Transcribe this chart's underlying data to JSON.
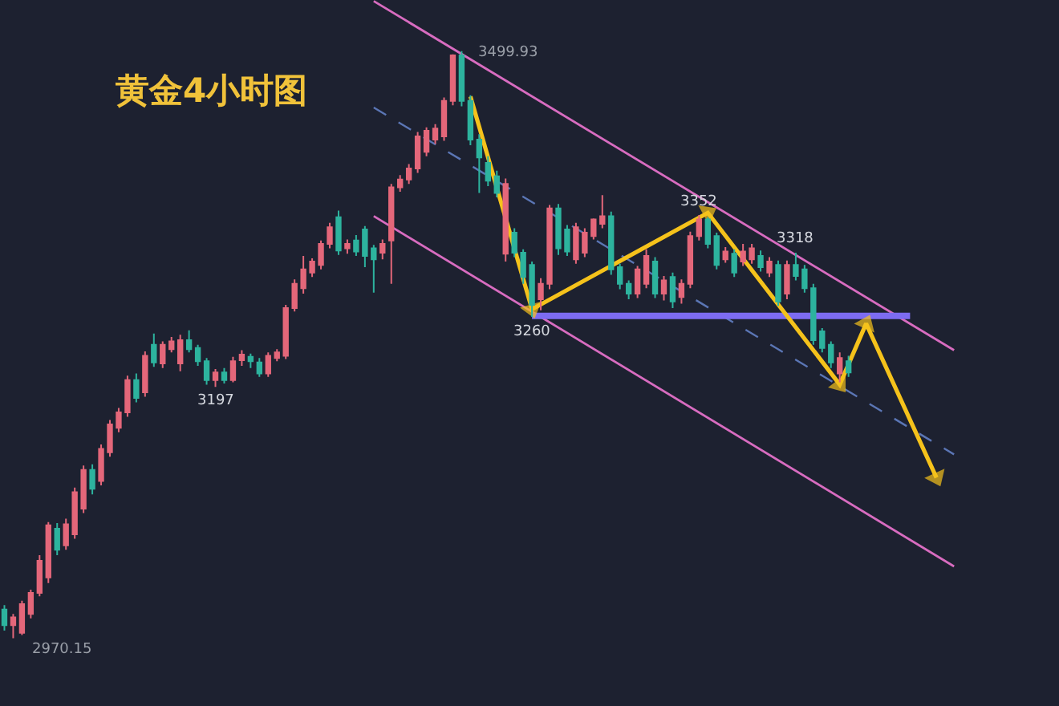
{
  "chart_data": {
    "type": "candlestick",
    "title": "黄金4小时图",
    "categories": [
      null,
      null,
      null,
      null,
      null,
      null,
      null,
      null,
      null,
      null,
      null,
      null,
      null,
      null,
      null,
      null,
      null,
      null,
      null,
      null,
      null,
      null,
      null,
      null,
      null,
      null,
      null,
      null,
      null,
      null,
      null,
      null,
      null,
      null,
      null,
      null,
      null,
      null,
      null,
      null,
      null,
      null,
      null,
      null,
      null,
      null,
      null,
      null,
      null,
      null,
      null,
      null,
      null,
      null,
      null,
      null,
      null,
      null,
      null,
      null,
      null,
      null,
      null,
      null,
      null,
      null,
      null,
      null,
      null,
      null,
      null,
      null,
      null,
      null,
      null,
      null,
      null,
      null,
      null,
      null,
      null,
      null,
      null,
      null,
      null,
      null,
      null,
      null,
      null,
      null,
      null,
      null,
      null,
      null,
      null,
      null,
      null,
      null,
      null,
      null,
      null,
      null,
      null,
      null,
      null,
      null,
      null,
      null,
      null
    ],
    "ohlc": [
      [
        2996,
        3000,
        2977,
        2982
      ],
      [
        2982,
        2992,
        2970.15,
        2989
      ],
      [
        2975,
        3004,
        2973,
        3001
      ],
      [
        2992,
        3014,
        2988,
        3011
      ],
      [
        3011,
        3045,
        3008,
        3040
      ],
      [
        3025,
        3075,
        3020,
        3072
      ],
      [
        3069,
        3074,
        3045,
        3050
      ],
      [
        3054,
        3078,
        3050,
        3073
      ],
      [
        3064,
        3106,
        3060,
        3102
      ],
      [
        3087,
        3126,
        3083,
        3122
      ],
      [
        3122,
        3127,
        3100,
        3105
      ],
      [
        3112,
        3145,
        3108,
        3141
      ],
      [
        3138,
        3167,
        3134,
        3163
      ],
      [
        3160,
        3178,
        3156,
        3174
      ],
      [
        3174,
        3207,
        3170,
        3203
      ],
      [
        3203,
        3209,
        3183,
        3187
      ],
      [
        3192,
        3229,
        3188,
        3225
      ],
      [
        3235,
        3245,
        3215,
        3219
      ],
      [
        3218,
        3238,
        3214,
        3235
      ],
      [
        3231,
        3242,
        3228,
        3238
      ],
      [
        3218,
        3244,
        3211,
        3239
      ],
      [
        3239,
        3248,
        3228,
        3231
      ],
      [
        3232,
        3235,
        3216,
        3220
      ],
      [
        3220,
        3223,
        3199,
        3203
      ],
      [
        3203,
        3213,
        3197,
        3210
      ],
      [
        3210,
        3214,
        3200,
        3203
      ],
      [
        3203,
        3224,
        3201,
        3220
      ],
      [
        3221,
        3230,
        3216,
        3226
      ],
      [
        3224,
        3227,
        3214,
        3220
      ],
      [
        3219,
        3223,
        3206,
        3209
      ],
      [
        3209,
        3228,
        3206,
        3225
      ],
      [
        3223,
        3231,
        3220,
        3228
      ],
      [
        3225,
        3271,
        3222,
        3268
      ],
      [
        3268,
        3294,
        3265,
        3290
      ],
      [
        3286,
        3315,
        3281,
        3303
      ],
      [
        3300,
        3313,
        3296,
        3310
      ],
      [
        3307,
        3329,
        3303,
        3326
      ],
      [
        3326,
        3345,
        3322,
        3341
      ],
      [
        3350,
        3356,
        3316,
        3320
      ],
      [
        3322,
        3330,
        3317,
        3326
      ],
      [
        3329,
        3334,
        3315,
        3319
      ],
      [
        3339,
        3342,
        3305,
        3315
      ],
      [
        3322,
        3325,
        3282,
        3312
      ],
      [
        3318,
        3330,
        3312,
        3326
      ],
      [
        3329,
        3380,
        3290,
        3377
      ],
      [
        3377,
        3388,
        3373,
        3384
      ],
      [
        3384,
        3398,
        3380,
        3394
      ],
      [
        3394,
        3427,
        3390,
        3423
      ],
      [
        3409,
        3431,
        3405,
        3428
      ],
      [
        3420,
        3434,
        3416,
        3430
      ],
      [
        3423,
        3458,
        3419,
        3455
      ],
      [
        3455,
        3497,
        3451,
        3496
      ],
      [
        3496,
        3499.93,
        3450,
        3455
      ],
      [
        3455,
        3460,
        3415,
        3420
      ],
      [
        3420,
        3425,
        3372,
        3404
      ],
      [
        3399,
        3405,
        3378,
        3383
      ],
      [
        3387,
        3392,
        3368,
        3372
      ],
      [
        3317,
        3385,
        3310,
        3380
      ],
      [
        3336,
        3340,
        3314,
        3318
      ],
      [
        3318,
        3321,
        3290,
        3296
      ],
      [
        3307,
        3310,
        3260,
        3271
      ],
      [
        3276,
        3295,
        3266,
        3290
      ],
      [
        3290,
        3361,
        3285,
        3358
      ],
      [
        3358,
        3362,
        3316,
        3322
      ],
      [
        3339,
        3343,
        3315,
        3319
      ],
      [
        3312,
        3345,
        3308,
        3341
      ],
      [
        3318,
        3340,
        3314,
        3336
      ],
      [
        3333,
        3349,
        3330,
        3348
      ],
      [
        3344,
        3370,
        3340,
        3351
      ],
      [
        3351,
        3355,
        3298,
        3303
      ],
      [
        3305,
        3308,
        3285,
        3290
      ],
      [
        3290,
        3293,
        3276,
        3281
      ],
      [
        3281,
        3306,
        3277,
        3303
      ],
      [
        3290,
        3321,
        3286,
        3315
      ],
      [
        3310,
        3314,
        3277,
        3281
      ],
      [
        3281,
        3297,
        3275,
        3293
      ],
      [
        3296,
        3300,
        3268,
        3274
      ],
      [
        3278,
        3294,
        3272,
        3290
      ],
      [
        3290,
        3337,
        3286,
        3333
      ],
      [
        3333,
        3352,
        3329,
        3348
      ],
      [
        3348,
        3350,
        3322,
        3326
      ],
      [
        3333,
        3336,
        3303,
        3307
      ],
      [
        3312,
        3323,
        3309,
        3319
      ],
      [
        3317,
        3321,
        3296,
        3300
      ],
      [
        3310,
        3326,
        3306,
        3319
      ],
      [
        3312,
        3326,
        3308,
        3322
      ],
      [
        3315,
        3320,
        3301,
        3305
      ],
      [
        3300,
        3314,
        3296,
        3310
      ],
      [
        3307,
        3311,
        3270,
        3274
      ],
      [
        3281,
        3311,
        3276,
        3307
      ],
      [
        3307,
        3318,
        3293,
        3297
      ],
      [
        3303,
        3307,
        3282,
        3286
      ],
      [
        3286,
        3290,
        3235,
        3239
      ],
      [
        3247,
        3250,
        3228,
        3232
      ],
      [
        3235,
        3238,
        3214,
        3219
      ],
      [
        3209,
        3228,
        3201,
        3223
      ],
      [
        3220,
        3225,
        3206,
        3210
      ],
      null,
      null,
      null,
      null,
      null,
      null,
      null,
      null,
      null,
      null,
      null,
      null
    ],
    "colors": [
      "#2db39e",
      "#e4677a",
      "#e4677a",
      "#e4677a",
      "#e4677a",
      "#e4677a",
      "#2db39e",
      "#e4677a",
      "#e4677a",
      "#e4677a",
      "#2db39e",
      "#e4677a",
      "#e4677a",
      "#e4677a",
      "#e4677a",
      "#2db39e",
      "#e4677a",
      "#2db39e",
      "#e4677a",
      "#e4677a",
      "#e4677a",
      "#2db39e",
      "#2db39e",
      "#2db39e",
      "#e4677a",
      "#2db39e",
      "#e4677a",
      "#e4677a",
      "#2db39e",
      "#2db39e",
      "#e4677a",
      "#e4677a",
      "#e4677a",
      "#e4677a",
      "#e4677a",
      "#e4677a",
      "#e4677a",
      "#e4677a",
      "#2db39e",
      "#e4677a",
      "#2db39e",
      "#2db39e",
      "#2db39e",
      "#e4677a",
      "#e4677a",
      "#e4677a",
      "#e4677a",
      "#e4677a",
      "#e4677a",
      "#e4677a",
      "#e4677a",
      "#e4677a",
      "#2db39e",
      "#2db39e",
      "#2db39e",
      "#2db39e",
      "#2db39e",
      "#e4677a",
      "#2db39e",
      "#2db39e",
      "#2db39e",
      "#e4677a",
      "#e4677a",
      "#2db39e",
      "#2db39e",
      "#e4677a",
      "#e4677a",
      "#e4677a",
      "#e4677a",
      "#2db39e",
      "#2db39e",
      "#2db39e",
      "#e4677a",
      "#e4677a",
      "#2db39e",
      "#e4677a",
      "#2db39e",
      "#e4677a",
      "#e4677a",
      "#e4677a",
      "#2db39e",
      "#2db39e",
      "#e4677a",
      "#2db39e",
      "#e4677a",
      "#e4677a",
      "#2db39e",
      "#e4677a",
      "#2db39e",
      "#e4677a",
      "#2db39e",
      "#2db39e",
      "#2db39e",
      "#2db39e",
      "#2db39e",
      "#e4677a",
      "#2db39e",
      null,
      null,
      null,
      null,
      null,
      null,
      null,
      null,
      null,
      null,
      null,
      null
    ],
    "series": [
      {
        "type": "line",
        "color": "#d86cc0",
        "values": [
          null,
          null,
          null,
          null,
          null,
          null,
          null,
          null,
          null,
          null,
          null,
          null,
          null,
          null,
          null,
          null,
          null,
          null,
          null,
          null,
          null,
          null,
          null,
          null,
          null,
          null,
          null,
          null,
          null,
          null,
          null,
          null,
          null,
          null,
          null,
          null,
          null,
          null,
          null,
          null,
          null,
          null,
          3545,
          null,
          null,
          null,
          null,
          null,
          null,
          null,
          null,
          null,
          null,
          null,
          null,
          null,
          null,
          null,
          null,
          null,
          null,
          null,
          null,
          null,
          null,
          null,
          null,
          null,
          null,
          null,
          null,
          null,
          null,
          null,
          null,
          null,
          null,
          null,
          null,
          null,
          null,
          null,
          null,
          null,
          null,
          null,
          null,
          null,
          null,
          null,
          null,
          null,
          null,
          null,
          null,
          null,
          null,
          null,
          null,
          null,
          null,
          null,
          null,
          null,
          null,
          null,
          null,
          null,
          3230
        ]
      },
      {
        "type": "line",
        "color": "#d86cc0",
        "values": [
          null,
          null,
          null,
          null,
          null,
          null,
          null,
          null,
          null,
          null,
          null,
          null,
          null,
          null,
          null,
          null,
          null,
          null,
          null,
          null,
          null,
          null,
          null,
          null,
          null,
          null,
          null,
          null,
          null,
          null,
          null,
          null,
          null,
          null,
          null,
          null,
          null,
          null,
          null,
          null,
          null,
          null,
          3351,
          null,
          null,
          null,
          null,
          null,
          null,
          null,
          null,
          null,
          null,
          null,
          null,
          null,
          null,
          null,
          null,
          null,
          null,
          null,
          null,
          null,
          null,
          null,
          null,
          null,
          null,
          null,
          null,
          null,
          null,
          null,
          null,
          null,
          null,
          null,
          null,
          null,
          null,
          null,
          null,
          null,
          null,
          null,
          null,
          null,
          null,
          null,
          null,
          null,
          null,
          null,
          null,
          null,
          null,
          null,
          null,
          null,
          null,
          null,
          null,
          null,
          null,
          null,
          null,
          null,
          3035
        ]
      },
      {
        "type": "line",
        "color": "#5b76b5",
        "line_style": "dashed",
        "values": [
          null,
          null,
          null,
          null,
          null,
          null,
          null,
          null,
          null,
          null,
          null,
          null,
          null,
          null,
          null,
          null,
          null,
          null,
          null,
          null,
          null,
          null,
          null,
          null,
          null,
          null,
          null,
          null,
          null,
          null,
          null,
          null,
          null,
          null,
          null,
          null,
          null,
          null,
          null,
          null,
          null,
          null,
          3449,
          null,
          null,
          null,
          null,
          null,
          null,
          null,
          null,
          null,
          null,
          null,
          null,
          null,
          null,
          null,
          null,
          null,
          null,
          null,
          null,
          null,
          null,
          null,
          null,
          null,
          null,
          null,
          null,
          null,
          null,
          null,
          null,
          null,
          null,
          null,
          null,
          null,
          null,
          null,
          null,
          null,
          null,
          null,
          null,
          null,
          null,
          null,
          null,
          null,
          null,
          null,
          null,
          null,
          null,
          null,
          null,
          null,
          null,
          null,
          null,
          null,
          null,
          null,
          null,
          null,
          3136
        ]
      },
      {
        "type": "line",
        "color": "#7d6cf2",
        "values": [
          null,
          null,
          null,
          null,
          null,
          null,
          null,
          null,
          null,
          null,
          null,
          null,
          null,
          null,
          null,
          null,
          null,
          null,
          null,
          null,
          null,
          null,
          null,
          null,
          null,
          null,
          null,
          null,
          null,
          null,
          null,
          null,
          null,
          null,
          null,
          null,
          null,
          null,
          null,
          null,
          null,
          null,
          null,
          null,
          null,
          null,
          null,
          null,
          null,
          null,
          null,
          null,
          null,
          null,
          null,
          null,
          null,
          null,
          null,
          null,
          3261,
          null,
          null,
          null,
          null,
          null,
          null,
          null,
          null,
          null,
          null,
          null,
          null,
          null,
          null,
          null,
          null,
          null,
          null,
          null,
          null,
          null,
          null,
          null,
          null,
          null,
          null,
          null,
          null,
          null,
          null,
          null,
          null,
          null,
          null,
          null,
          null,
          null,
          null,
          null,
          null,
          null,
          null,
          3261,
          null,
          null,
          null,
          null,
          null
        ]
      },
      {
        "type": "line",
        "color": "#f5c21b",
        "marker": "triangle",
        "values": [
          null,
          null,
          null,
          null,
          null,
          null,
          null,
          null,
          null,
          null,
          null,
          null,
          null,
          null,
          null,
          null,
          null,
          null,
          null,
          null,
          null,
          null,
          null,
          null,
          null,
          null,
          null,
          null,
          null,
          null,
          null,
          null,
          null,
          null,
          null,
          null,
          null,
          null,
          null,
          null,
          null,
          null,
          null,
          null,
          null,
          null,
          null,
          null,
          null,
          null,
          null,
          null,
          null,
          3459,
          null,
          null,
          null,
          null,
          null,
          null,
          3267,
          null,
          null,
          null,
          null,
          null,
          null,
          null,
          null,
          null,
          null,
          null,
          null,
          null,
          null,
          null,
          null,
          null,
          null,
          null,
          3354,
          null,
          null,
          null,
          null,
          null,
          null,
          null,
          null,
          null,
          null,
          null,
          null,
          null,
          null,
          3199,
          null,
          null,
          3254,
          null,
          null,
          null,
          null,
          null,
          null,
          null,
          3115,
          null,
          null
        ]
      }
    ],
    "annotations": [
      "3499.93",
      {
        "text": "3352",
        "y": 3352
      },
      {
        "text": "3318",
        "y": 3318
      },
      {
        "text": "3260",
        "y": 3260
      },
      {
        "text": "3197",
        "y": 3197
      },
      "2970.15"
    ],
    "ylim": [
      2909,
      3546
    ]
  }
}
